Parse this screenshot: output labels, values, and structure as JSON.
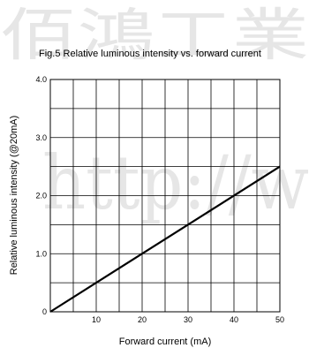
{
  "watermark": {
    "top_text": "佰鴻工業",
    "middle_text": "http://w",
    "color": "#e6e6e6"
  },
  "chart_data": {
    "type": "line",
    "title": "Fig.5 Relative luminous intensity vs. forward current",
    "xlabel": "Forward current (mA)",
    "ylabel": "Relative luminous intensity (@20mA)",
    "xlim": [
      0,
      50
    ],
    "ylim": [
      0,
      4
    ],
    "x_ticks": [
      10,
      20,
      30,
      40,
      50
    ],
    "x_tick_labels": [
      "10",
      "20",
      "30",
      "40",
      "50"
    ],
    "y_ticks": [
      0,
      1,
      2,
      3,
      4
    ],
    "y_tick_labels": [
      "0",
      "1.0",
      "2.0",
      "3.0",
      "4.0"
    ],
    "grid": true,
    "x_grid_step": 5,
    "y_grid_step": 0.5,
    "series": [
      {
        "x": [
          0,
          50
        ],
        "y": [
          0,
          2.5
        ],
        "color": "#000000"
      }
    ]
  }
}
